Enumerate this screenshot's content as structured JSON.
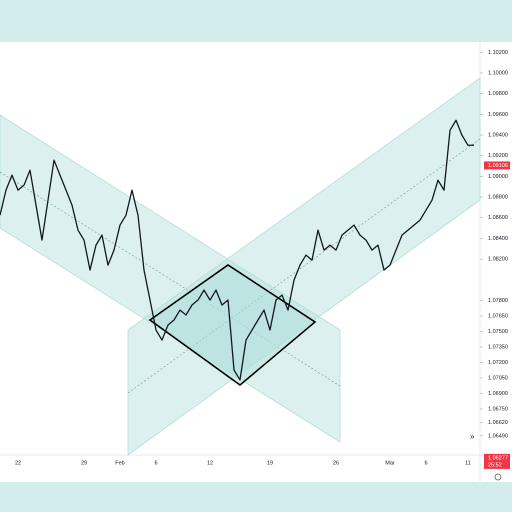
{
  "chart_data": {
    "type": "line",
    "color": "#131722",
    "categories": [
      null,
      null,
      null,
      "22",
      null,
      null,
      null,
      null,
      null,
      null,
      null,
      null,
      null,
      null,
      "29",
      null,
      null,
      null,
      null,
      null,
      "Feb",
      null,
      null,
      null,
      null,
      null,
      "6",
      null,
      null,
      null,
      null,
      null,
      null,
      null,
      null,
      "12",
      null,
      null,
      null,
      null,
      null,
      null,
      null,
      null,
      null,
      "19",
      null,
      null,
      null,
      null,
      null,
      null,
      null,
      null,
      null,
      null,
      "26",
      null,
      null,
      null,
      null,
      null,
      null,
      null,
      null,
      "Mar",
      null,
      null,
      null,
      null,
      null,
      "6",
      null,
      null,
      null,
      null,
      null,
      null,
      "11",
      null
    ],
    "values": [
      1.08625,
      1.08867,
      1.09012,
      1.08867,
      1.08915,
      1.0906,
      1.08722,
      1.08384,
      1.0877,
      1.09157,
      1.09012,
      1.08867,
      1.08722,
      1.0848,
      1.08384,
      1.08094,
      1.08335,
      1.08432,
      1.08142,
      1.08287,
      1.08529,
      1.08625,
      1.08867,
      1.08625,
      1.08094,
      1.07804,
      1.07514,
      1.07417,
      1.07562,
      1.07611,
      1.07707,
      1.07659,
      1.07756,
      1.07804,
      1.079,
      1.07804,
      1.079,
      1.07756,
      1.07804,
      1.07128,
      1.07031,
      1.07417,
      1.07514,
      1.07611,
      1.07707,
      1.07514,
      1.07804,
      1.07852,
      1.07707,
      1.07997,
      1.08142,
      1.08239,
      1.0819,
      1.0848,
      1.08287,
      1.08335,
      1.08287,
      1.08432,
      1.0848,
      1.08529,
      1.08432,
      1.08384,
      1.08287,
      1.08335,
      1.08094,
      1.08142,
      1.08287,
      1.08432,
      1.0848,
      1.08529,
      1.08577,
      1.08673,
      1.0877,
      1.08963,
      1.08867,
      1.09446,
      1.09543,
      1.09398,
      1.09301,
      1.09301
    ],
    "ylim": [
      1.0616,
      1.103
    ],
    "yticks": [
      {
        "value": 1.102,
        "label": "1.10200"
      },
      {
        "value": 1.1,
        "label": "1.10000"
      },
      {
        "value": 1.098,
        "label": "1.09800"
      },
      {
        "value": 1.096,
        "label": "1.09600"
      },
      {
        "value": 1.094,
        "label": "1.09400"
      },
      {
        "value": 1.092,
        "label": "1.09200"
      },
      {
        "value": 1.09,
        "label": "1.09000"
      },
      {
        "value": 1.088,
        "label": "1.08800"
      },
      {
        "value": 1.086,
        "label": "1.08600"
      },
      {
        "value": 1.084,
        "label": "1.08400"
      },
      {
        "value": 1.082,
        "label": "1.08200"
      },
      {
        "value": 1.078,
        "label": "1.07800"
      },
      {
        "value": 1.0765,
        "label": "1.07650"
      },
      {
        "value": 1.075,
        "label": "1.07500"
      },
      {
        "value": 1.0735,
        "label": "1.07350"
      },
      {
        "value": 1.072,
        "label": "1.07200"
      },
      {
        "value": 1.0705,
        "label": "1.07050"
      },
      {
        "value": 1.069,
        "label": "1.06900"
      },
      {
        "value": 1.0675,
        "label": "1.06750"
      },
      {
        "value": 1.0662,
        "label": "1.06620"
      },
      {
        "value": 1.0649,
        "label": "1.06490"
      }
    ],
    "price_tags": [
      {
        "value": 1.09106,
        "color": "#f23645"
      },
      {
        "value": 1.06277,
        "time": "25:52",
        "color": "#f23645"
      }
    ]
  }
}
